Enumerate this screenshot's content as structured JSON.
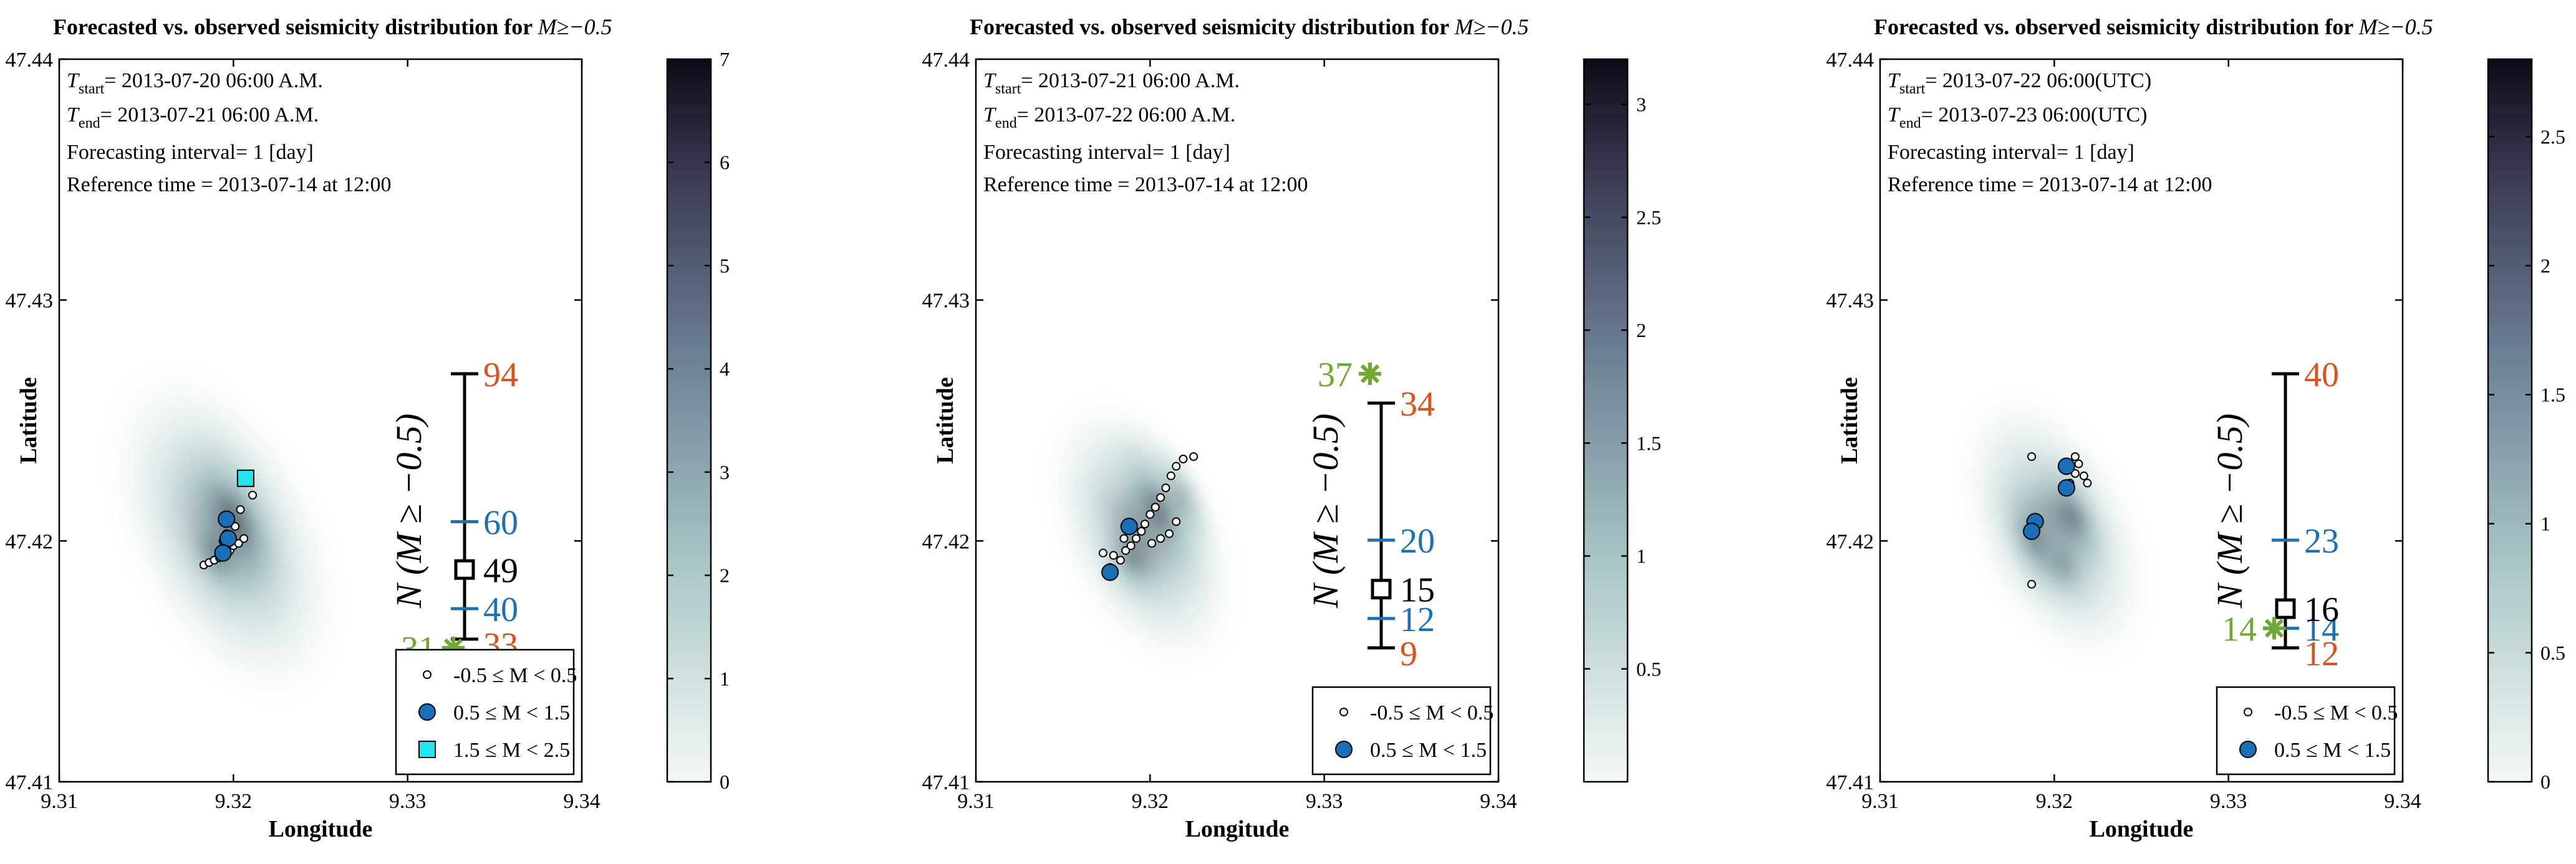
{
  "chart_data": [
    {
      "type": "heatmap",
      "title_text": "Forecasted vs. observed seismicity distribution for ",
      "title_math": "M≥−0.5",
      "xlabel": "Longitude",
      "ylabel": "Latitude",
      "xlim": [
        9.31,
        9.34
      ],
      "ylim": [
        47.41,
        47.44
      ],
      "xticks": [
        9.31,
        9.32,
        9.33,
        9.34
      ],
      "xtick_labels": [
        "9.31",
        "9.32",
        "9.33",
        "9.34"
      ],
      "yticks": [
        47.41,
        47.42,
        47.43,
        47.44
      ],
      "ytick_labels": [
        "47.41",
        "47.42",
        "47.43",
        "47.44"
      ],
      "info": {
        "tstart_label": "T",
        "tstart_sub": "start",
        "tstart_value": "= 2013-07-20 06:00 A.M.",
        "tend_label": "T",
        "tend_sub": "end",
        "tend_value": "= 2013-07-21 06:00 A.M.",
        "interval": "Forecasting interval= 1 [day]",
        "reference": "Reference time = 2013-07-14 at 12:00"
      },
      "colorbar": {
        "min": 0,
        "max": 7,
        "ticks": [
          0,
          1,
          2,
          3,
          4,
          5,
          6,
          7
        ],
        "tick_labels": [
          "0",
          "1",
          "2",
          "3",
          "4",
          "5",
          "6",
          "7"
        ]
      },
      "density_blobs": [
        {
          "x": 9.3195,
          "y": 47.4203,
          "rx": 0.006,
          "ry": 0.008,
          "w": 1.0
        },
        {
          "x": 9.32,
          "y": 47.4208,
          "rx": 0.003,
          "ry": 0.005,
          "w": 1.2
        },
        {
          "x": 9.319,
          "y": 47.4195,
          "rx": 0.002,
          "ry": 0.003,
          "w": 0.8
        }
      ],
      "interval_plot": {
        "ylabel": "N (M ≥ −0.5)",
        "outer_low": 33,
        "outer_high": 94,
        "inner_low": 40,
        "inner_high": 60,
        "forecast": 49,
        "observed": 31,
        "outer_low_label": "33",
        "outer_high_label": "94",
        "inner_low_label": "40",
        "inner_high_label": "60",
        "forecast_label": "49",
        "observed_label": "31"
      },
      "events": [
        {
          "x": 9.3183,
          "y": 47.419,
          "m": 0
        },
        {
          "x": 9.3186,
          "y": 47.4191,
          "m": 0
        },
        {
          "x": 9.3189,
          "y": 47.4192,
          "m": 0
        },
        {
          "x": 9.3192,
          "y": 47.4193,
          "m": 0
        },
        {
          "x": 9.3195,
          "y": 47.4194,
          "m": 0
        },
        {
          "x": 9.3198,
          "y": 47.4196,
          "m": 0
        },
        {
          "x": 9.32,
          "y": 47.4198,
          "m": 0
        },
        {
          "x": 9.3203,
          "y": 47.4199,
          "m": 0
        },
        {
          "x": 9.3206,
          "y": 47.4201,
          "m": 0
        },
        {
          "x": 9.3196,
          "y": 47.4203,
          "m": 0
        },
        {
          "x": 9.3201,
          "y": 47.4206,
          "m": 0
        },
        {
          "x": 9.3204,
          "y": 47.4213,
          "m": 0
        },
        {
          "x": 9.3211,
          "y": 47.4219,
          "m": 0
        },
        {
          "x": 9.3194,
          "y": 47.42,
          "m": 0
        },
        {
          "x": 9.3196,
          "y": 47.4209,
          "m": 1
        },
        {
          "x": 9.3197,
          "y": 47.4201,
          "m": 1
        },
        {
          "x": 9.3194,
          "y": 47.4195,
          "m": 1
        },
        {
          "x": 9.3207,
          "y": 47.4226,
          "m": 2
        }
      ],
      "legend": [
        {
          "m": 0,
          "text": "-0.5 ≤ M < 0.5"
        },
        {
          "m": 1,
          "text": "0.5 ≤ M < 1.5"
        },
        {
          "m": 2,
          "text": "1.5 ≤ M < 2.5"
        }
      ]
    },
    {
      "type": "heatmap",
      "title_text": "Forecasted vs. observed seismicity distribution for ",
      "title_math": "M≥−0.5",
      "xlabel": "Longitude",
      "ylabel": "Latitude",
      "xlim": [
        9.31,
        9.34
      ],
      "ylim": [
        47.41,
        47.44
      ],
      "xticks": [
        9.31,
        9.32,
        9.33,
        9.34
      ],
      "xtick_labels": [
        "9.31",
        "9.32",
        "9.33",
        "9.34"
      ],
      "yticks": [
        47.41,
        47.42,
        47.43,
        47.44
      ],
      "ytick_labels": [
        "47.41",
        "47.42",
        "47.43",
        "47.44"
      ],
      "info": {
        "tstart_label": "T",
        "tstart_sub": "start",
        "tstart_value": "= 2013-07-21 06:00 A.M.",
        "tend_label": "T",
        "tend_sub": "end",
        "tend_value": "= 2013-07-22 06:00 A.M.",
        "interval": "Forecasting interval= 1 [day]",
        "reference": "Reference time = 2013-07-14 at 12:00"
      },
      "colorbar": {
        "min": 0,
        "max": 3.2,
        "ticks": [
          0.5,
          1,
          1.5,
          2,
          2.5,
          3
        ],
        "tick_labels": [
          "0.5",
          "1",
          "1.5",
          "2",
          "2.5",
          "3"
        ]
      },
      "density_blobs": [
        {
          "x": 9.3195,
          "y": 47.4203,
          "rx": 0.005,
          "ry": 0.0065,
          "w": 1.0
        },
        {
          "x": 9.3205,
          "y": 47.4213,
          "rx": 0.0025,
          "ry": 0.0045,
          "w": 1.1
        },
        {
          "x": 9.319,
          "y": 47.4193,
          "rx": 0.002,
          "ry": 0.0025,
          "w": 0.9
        },
        {
          "x": 9.3218,
          "y": 47.4218,
          "rx": 0.0012,
          "ry": 0.003,
          "w": 0.8
        }
      ],
      "interval_plot": {
        "ylabel": "N (M ≥ −0.5)",
        "outer_low": 9,
        "outer_high": 34,
        "inner_low": 12,
        "inner_high": 20,
        "forecast": 15,
        "observed": 37,
        "outer_low_label": "9",
        "outer_high_label": "34",
        "inner_low_label": "12",
        "inner_high_label": "20",
        "forecast_label": "15",
        "observed_label": "37"
      },
      "events": [
        {
          "x": 9.3177,
          "y": 47.4189,
          "m": 0
        },
        {
          "x": 9.3179,
          "y": 47.4194,
          "m": 0
        },
        {
          "x": 9.3183,
          "y": 47.4192,
          "m": 0
        },
        {
          "x": 9.3186,
          "y": 47.4196,
          "m": 0
        },
        {
          "x": 9.3189,
          "y": 47.4198,
          "m": 0
        },
        {
          "x": 9.3192,
          "y": 47.4201,
          "m": 0
        },
        {
          "x": 9.3195,
          "y": 47.4204,
          "m": 0
        },
        {
          "x": 9.3197,
          "y": 47.4207,
          "m": 0
        },
        {
          "x": 9.32,
          "y": 47.4211,
          "m": 0
        },
        {
          "x": 9.3203,
          "y": 47.4214,
          "m": 0
        },
        {
          "x": 9.3206,
          "y": 47.4218,
          "m": 0
        },
        {
          "x": 9.3209,
          "y": 47.4222,
          "m": 0
        },
        {
          "x": 9.3212,
          "y": 47.4227,
          "m": 0
        },
        {
          "x": 9.3215,
          "y": 47.4231,
          "m": 0
        },
        {
          "x": 9.3219,
          "y": 47.4234,
          "m": 0
        },
        {
          "x": 9.3225,
          "y": 47.4235,
          "m": 0
        },
        {
          "x": 9.3201,
          "y": 47.4199,
          "m": 0
        },
        {
          "x": 9.3206,
          "y": 47.4201,
          "m": 0
        },
        {
          "x": 9.3211,
          "y": 47.4203,
          "m": 0
        },
        {
          "x": 9.3173,
          "y": 47.4195,
          "m": 0
        },
        {
          "x": 9.3215,
          "y": 47.4208,
          "m": 0
        },
        {
          "x": 9.3185,
          "y": 47.4201,
          "m": 0
        },
        {
          "x": 9.3177,
          "y": 47.4187,
          "m": 1
        },
        {
          "x": 9.3188,
          "y": 47.4206,
          "m": 1
        }
      ],
      "legend": [
        {
          "m": 0,
          "text": "-0.5 ≤ M < 0.5"
        },
        {
          "m": 1,
          "text": "0.5 ≤ M < 1.5"
        }
      ]
    },
    {
      "type": "heatmap",
      "title_text": "Forecasted vs. observed seismicity distribution for ",
      "title_math": "M≥−0.5",
      "xlabel": "Longitude",
      "ylabel": "Latitude",
      "xlim": [
        9.31,
        9.34
      ],
      "ylim": [
        47.41,
        47.44
      ],
      "xticks": [
        9.31,
        9.32,
        9.33,
        9.34
      ],
      "xtick_labels": [
        "9.31",
        "9.32",
        "9.33",
        "9.34"
      ],
      "yticks": [
        47.41,
        47.42,
        47.43,
        47.44
      ],
      "ytick_labels": [
        "47.41",
        "47.42",
        "47.43",
        "47.44"
      ],
      "info": {
        "tstart_label": "T",
        "tstart_sub": "start",
        "tstart_value": "= 2013-07-22 06:00(UTC)",
        "tend_label": "T",
        "tend_sub": "end",
        "tend_value": "= 2013-07-23 06:00(UTC)",
        "interval": "Forecasting interval= 1 [day]",
        "reference": "Reference time = 2013-07-14 at 12:00"
      },
      "colorbar": {
        "min": 0,
        "max": 2.8,
        "ticks": [
          0,
          0.5,
          1,
          1.5,
          2,
          2.5
        ],
        "tick_labels": [
          "0",
          "0.5",
          "1",
          "1.5",
          "2",
          "2.5"
        ]
      },
      "density_blobs": [
        {
          "x": 9.32,
          "y": 47.4205,
          "rx": 0.005,
          "ry": 0.0065,
          "w": 1.0
        },
        {
          "x": 9.319,
          "y": 47.42,
          "rx": 0.002,
          "ry": 0.0035,
          "w": 1.2
        },
        {
          "x": 9.321,
          "y": 47.421,
          "rx": 0.002,
          "ry": 0.0035,
          "w": 1.0
        },
        {
          "x": 9.3205,
          "y": 47.419,
          "rx": 0.0015,
          "ry": 0.0025,
          "w": 0.8
        }
      ],
      "interval_plot": {
        "ylabel": "N (M ≥ −0.5)",
        "outer_low": 12,
        "outer_high": 40,
        "inner_low": 14,
        "inner_high": 23,
        "forecast": 16,
        "observed": 14,
        "outer_low_label": "12",
        "outer_high_label": "40",
        "inner_low_label": "14",
        "inner_high_label": "23",
        "forecast_label": "16",
        "observed_label": "14"
      },
      "events": [
        {
          "x": 9.3187,
          "y": 47.4235,
          "m": 0
        },
        {
          "x": 9.3187,
          "y": 47.4182,
          "m": 0
        },
        {
          "x": 9.3214,
          "y": 47.4232,
          "m": 0
        },
        {
          "x": 9.3217,
          "y": 47.4227,
          "m": 0
        },
        {
          "x": 9.3219,
          "y": 47.4224,
          "m": 0
        },
        {
          "x": 9.3212,
          "y": 47.4228,
          "m": 0
        },
        {
          "x": 9.3209,
          "y": 47.4224,
          "m": 0
        },
        {
          "x": 9.3186,
          "y": 47.4203,
          "m": 0
        },
        {
          "x": 9.3212,
          "y": 47.4235,
          "m": 0
        },
        {
          "x": 9.3207,
          "y": 47.4231,
          "m": 1
        },
        {
          "x": 9.3207,
          "y": 47.4222,
          "m": 1
        },
        {
          "x": 9.3189,
          "y": 47.4208,
          "m": 1
        },
        {
          "x": 9.3187,
          "y": 47.4204,
          "m": 1
        }
      ],
      "legend": [
        {
          "m": 0,
          "text": "-0.5 ≤ M < 0.5"
        },
        {
          "m": 1,
          "text": "0.5 ≤ M < 1.5"
        }
      ]
    }
  ],
  "colors": {
    "density_light": "#eef4f3",
    "density_mid": "#8fb3b4",
    "density_dark": "#1f1c33",
    "event_small": "#ffffff",
    "event_mid": "#1a70b8",
    "event_large": "#22e5ef",
    "outer_label": "#d9531e",
    "inner_label": "#1f6fb5",
    "forecast_label": "#000000",
    "observed": "#6fa832"
  }
}
